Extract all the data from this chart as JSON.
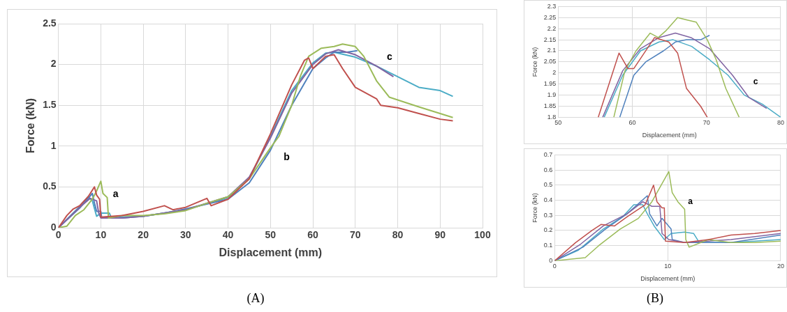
{
  "chart_data": [
    {
      "type": "line",
      "xlabel": "Displacement (mm)",
      "ylabel": "Force (kN)",
      "xlim": [
        0,
        100
      ],
      "xticks": [
        0,
        10,
        20,
        30,
        40,
        50,
        60,
        70,
        80,
        90,
        100
      ],
      "ylim": [
        0,
        2.5
      ],
      "yticks": [
        0,
        0.5,
        1,
        1.5,
        2,
        2.5
      ],
      "grid": true,
      "legend": false,
      "marker": "none",
      "line_style": "solid",
      "annotations": [
        "a",
        "b",
        "c",
        "(A)"
      ],
      "series": [
        {
          "color": "#c0504d",
          "x": [
            0,
            2,
            3.5,
            5,
            7,
            8.5,
            9,
            9.7,
            10,
            15,
            20,
            25,
            27,
            30,
            35,
            36,
            40,
            45,
            50,
            55,
            58,
            59,
            60,
            63,
            65,
            67,
            70,
            75,
            76,
            80,
            85,
            90,
            93
          ],
          "values": [
            0,
            0.15,
            0.23,
            0.27,
            0.38,
            0.5,
            0.4,
            0.35,
            0.13,
            0.15,
            0.2,
            0.27,
            0.22,
            0.25,
            0.36,
            0.27,
            0.35,
            0.6,
            1.15,
            1.75,
            2.05,
            2.08,
            1.95,
            2.1,
            2.12,
            1.95,
            1.72,
            1.58,
            1.5,
            1.47,
            1.4,
            1.33,
            1.31
          ]
        },
        {
          "color": "#9bbb59",
          "x": [
            0,
            2,
            4,
            6,
            8,
            9,
            10,
            10.5,
            11.5,
            11.8,
            15,
            20,
            25,
            30,
            35,
            40,
            45,
            50,
            52,
            55,
            57,
            59,
            62,
            65,
            67,
            70,
            72,
            75,
            78,
            85,
            90,
            93
          ],
          "values": [
            0,
            0.02,
            0.15,
            0.22,
            0.35,
            0.45,
            0.57,
            0.42,
            0.37,
            0.12,
            0.15,
            0.15,
            0.17,
            0.21,
            0.3,
            0.38,
            0.6,
            0.98,
            1.12,
            1.5,
            1.85,
            2.1,
            2.2,
            2.22,
            2.25,
            2.22,
            2.1,
            1.8,
            1.6,
            1.48,
            1.4,
            1.35
          ]
        },
        {
          "color": "#8064a2",
          "x": [
            0,
            5,
            7.5,
            9,
            9.5,
            10,
            15,
            20,
            30,
            40,
            45,
            50,
            55,
            60,
            63,
            66,
            70,
            75,
            79
          ],
          "values": [
            0,
            0.25,
            0.36,
            0.33,
            0.18,
            0.12,
            0.12,
            0.14,
            0.22,
            0.38,
            0.62,
            1.1,
            1.65,
            2,
            2.13,
            2.18,
            2.12,
            1.98,
            1.85
          ]
        },
        {
          "color": "#4f81bd",
          "x": [
            0,
            5,
            8,
            8.5,
            9,
            10,
            10.2,
            15,
            20,
            25,
            30,
            40,
            45,
            50,
            55,
            60,
            63,
            65,
            68,
            70.5
          ],
          "values": [
            0,
            0.24,
            0.42,
            0.3,
            0.2,
            0.2,
            0.12,
            0.12,
            0.14,
            0.18,
            0.23,
            0.35,
            0.55,
            0.95,
            1.5,
            1.95,
            2.08,
            2.15,
            2.15,
            2.17
          ]
        },
        {
          "color": "#4bacc6",
          "x": [
            0,
            5,
            7,
            8,
            9,
            10,
            12,
            12.5,
            15,
            20,
            30,
            40,
            45,
            50,
            55,
            60,
            63,
            65,
            70,
            75,
            80,
            85,
            90,
            93
          ],
          "values": [
            0,
            0.26,
            0.38,
            0.33,
            0.14,
            0.18,
            0.18,
            0.12,
            0.13,
            0.14,
            0.22,
            0.37,
            0.6,
            1.12,
            1.68,
            2.02,
            2.14,
            2.15,
            2.09,
            1.98,
            1.85,
            1.72,
            1.68,
            1.61
          ]
        }
      ]
    },
    {
      "type": "line",
      "xlabel": "Displacement (mm)",
      "ylabel": "Force (kN)",
      "xlim": [
        50,
        80
      ],
      "xticks": [
        50,
        60,
        70,
        80
      ],
      "ylim": [
        1.8,
        2.3
      ],
      "yticks": [
        1.8,
        1.85,
        1.9,
        1.95,
        2,
        2.05,
        2.1,
        2.15,
        2.2,
        2.25,
        2.3
      ],
      "grid": true,
      "legend": false,
      "marker": "none",
      "line_style": "solid",
      "annotations": [
        "c"
      ],
      "series": [
        {
          "color": "#c0504d",
          "x": [
            55.4,
            58.2,
            59.4,
            60.2,
            63,
            64.9,
            66.1,
            67.3,
            69.2,
            70.1
          ],
          "values": [
            1.8,
            2.09,
            2.02,
            2.02,
            2.16,
            2.14,
            2.09,
            1.93,
            1.85,
            1.8
          ]
        },
        {
          "color": "#9bbb59",
          "x": [
            57.5,
            59,
            60.5,
            62.4,
            63.5,
            64.5,
            66.1,
            67.3,
            68.6,
            70.1,
            71.3,
            72.6,
            74.4
          ],
          "values": [
            1.8,
            2.01,
            2.1,
            2.18,
            2.16,
            2.19,
            2.25,
            2.24,
            2.23,
            2.15,
            2.06,
            1.93,
            1.8
          ]
        },
        {
          "color": "#8064a2",
          "x": [
            56,
            58.7,
            61.1,
            63.6,
            65.8,
            67.9,
            70.4,
            73.5,
            75.7,
            78.1
          ],
          "values": [
            1.8,
            2.01,
            2.11,
            2.16,
            2.18,
            2.16,
            2.11,
            1.99,
            1.89,
            1.84
          ]
        },
        {
          "color": "#4f81bd",
          "x": [
            58.3,
            60.2,
            61.8,
            64.2,
            65.8,
            67.3,
            69.2,
            70.4
          ],
          "values": [
            1.8,
            1.99,
            2.05,
            2.1,
            2.14,
            2.15,
            2.15,
            2.17
          ]
        },
        {
          "color": "#4bacc6",
          "x": [
            56.2,
            58.7,
            61.1,
            63.6,
            65.5,
            68,
            70.4,
            72.9,
            75.1,
            77.5,
            80
          ],
          "values": [
            1.8,
            1.99,
            2.1,
            2.14,
            2.15,
            2.12,
            2.06,
            1.99,
            1.9,
            1.86,
            1.8
          ]
        }
      ]
    },
    {
      "type": "line",
      "xlabel": "Displacement (mm)",
      "ylabel": "Force (kN)",
      "xlim": [
        0,
        20
      ],
      "xticks": [
        0,
        10,
        20
      ],
      "ylim": [
        0,
        0.7
      ],
      "yticks": [
        0,
        0.1,
        0.2,
        0.3,
        0.4,
        0.5,
        0.6,
        0.7
      ],
      "grid": true,
      "legend": false,
      "marker": "none",
      "line_style": "solid",
      "annotations": [
        "a",
        "(B)"
      ],
      "series": [
        {
          "color": "#c0504d",
          "x": [
            0,
            1.85,
            3.3,
            4.1,
            5.3,
            6.4,
            8,
            8.75,
            9.05,
            9.5,
            9.7,
            9.8,
            11.5,
            13.6,
            15.6,
            17.7,
            20
          ],
          "values": [
            0,
            0.12,
            0.2,
            0.24,
            0.23,
            0.29,
            0.37,
            0.5,
            0.39,
            0.35,
            0.35,
            0.13,
            0.12,
            0.14,
            0.17,
            0.18,
            0.2
          ]
        },
        {
          "color": "#9bbb59",
          "x": [
            0,
            2.7,
            3.9,
            5.8,
            7.4,
            8.6,
            9.5,
            10.1,
            10.4,
            10.9,
            11.5,
            11.6,
            11.9,
            13.6,
            15.6,
            17.7,
            20
          ],
          "values": [
            0,
            0.02,
            0.1,
            0.21,
            0.28,
            0.39,
            0.51,
            0.59,
            0.45,
            0.39,
            0.34,
            0.14,
            0.09,
            0.14,
            0.12,
            0.12,
            0.13
          ]
        },
        {
          "color": "#8064a2",
          "x": [
            0,
            2.3,
            4.3,
            6.4,
            7.8,
            8.6,
            9.3,
            9.5,
            10.1,
            11.5,
            15.6,
            20
          ],
          "values": [
            0,
            0.11,
            0.23,
            0.31,
            0.39,
            0.36,
            0.36,
            0.18,
            0.14,
            0.12,
            0.14,
            0.18
          ]
        },
        {
          "color": "#4f81bd",
          "x": [
            0,
            2.5,
            4.5,
            6.4,
            8.2,
            8.4,
            9.05,
            9.5,
            10.3,
            10.4,
            11.5,
            15.6,
            20
          ],
          "values": [
            0,
            0.09,
            0.21,
            0.31,
            0.43,
            0.31,
            0.23,
            0.28,
            0.21,
            0.14,
            0.12,
            0.12,
            0.17
          ]
        },
        {
          "color": "#4bacc6",
          "x": [
            0,
            2.1,
            4.3,
            6,
            7,
            7.8,
            8.2,
            8.8,
            9.7,
            10.3,
            11.5,
            12.3,
            12.8,
            15.6,
            20
          ],
          "values": [
            0,
            0.07,
            0.21,
            0.29,
            0.37,
            0.37,
            0.31,
            0.23,
            0.14,
            0.18,
            0.19,
            0.18,
            0.12,
            0.12,
            0.14
          ]
        }
      ]
    }
  ]
}
